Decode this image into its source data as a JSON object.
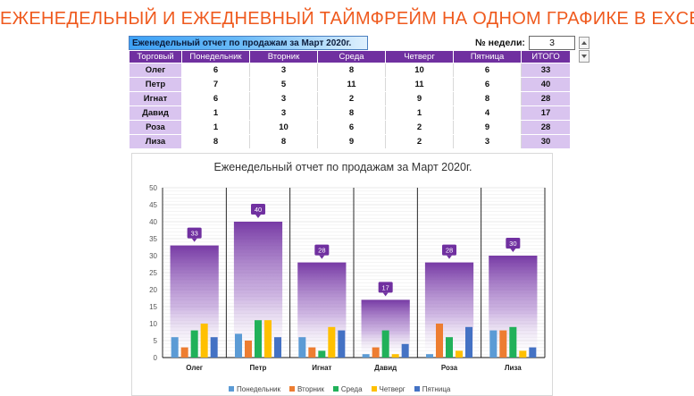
{
  "banner": "ЕЖЕНЕДЕЛЬНЫЙ И ЕЖЕДНЕВНЫЙ ТАЙМФРЕЙМ НА ОДНОМ ГРАФИКЕ В EXCEL",
  "sheet": {
    "report_title": "Еженедельный отчет по продажам за Март 2020г.",
    "week_label": "№ недели:",
    "week_value": "3",
    "headers": [
      "Торговый",
      "Понедельник",
      "Вторник",
      "Среда",
      "Четверг",
      "Пятница",
      "ИТОГО"
    ],
    "rows": [
      {
        "name": "Олег",
        "values": [
          "6",
          "3",
          "8",
          "10",
          "6"
        ],
        "total": "33"
      },
      {
        "name": "Петр",
        "values": [
          "7",
          "5",
          "11",
          "11",
          "6"
        ],
        "total": "40"
      },
      {
        "name": "Игнат",
        "values": [
          "6",
          "3",
          "2",
          "9",
          "8"
        ],
        "total": "28"
      },
      {
        "name": "Давид",
        "values": [
          "1",
          "3",
          "8",
          "1",
          "4"
        ],
        "total": "17"
      },
      {
        "name": "Роза",
        "values": [
          "1",
          "10",
          "6",
          "2",
          "9"
        ],
        "total": "28"
      },
      {
        "name": "Лиза",
        "values": [
          "8",
          "8",
          "9",
          "2",
          "3"
        ],
        "total": "30"
      }
    ]
  },
  "chart_data": {
    "type": "bar",
    "title": "Еженедельный отчет по продажам за Март 2020г.",
    "categories": [
      "Олег",
      "Петр",
      "Игнат",
      "Давид",
      "Роза",
      "Лиза"
    ],
    "ylim": [
      0,
      50
    ],
    "yticks": [
      "0",
      "5",
      "10",
      "15",
      "20",
      "25",
      "30",
      "35",
      "40",
      "45",
      "50"
    ],
    "totals": [
      33,
      40,
      28,
      17,
      28,
      30
    ],
    "total_labels": [
      "33",
      "40",
      "28",
      "17",
      "28",
      "30"
    ],
    "series": [
      {
        "name": "Понедельник",
        "values": [
          6,
          7,
          6,
          1,
          1,
          8
        ]
      },
      {
        "name": "Вторник",
        "values": [
          3,
          5,
          3,
          3,
          10,
          8
        ]
      },
      {
        "name": "Среда",
        "values": [
          8,
          11,
          2,
          8,
          6,
          9
        ]
      },
      {
        "name": "Четверг",
        "values": [
          10,
          11,
          9,
          1,
          2,
          2
        ]
      },
      {
        "name": "Пятница",
        "values": [
          6,
          6,
          8,
          4,
          9,
          3
        ]
      }
    ],
    "grid": true,
    "legend": "bottom"
  },
  "colors": {
    "header_purple": "#7030a0",
    "total_bar": "#7030a0",
    "series": [
      "#5b9bd5",
      "#ed7d31",
      "#21b15a",
      "#ffc000",
      "#4472c4"
    ],
    "banner": "#ef5a1e"
  }
}
